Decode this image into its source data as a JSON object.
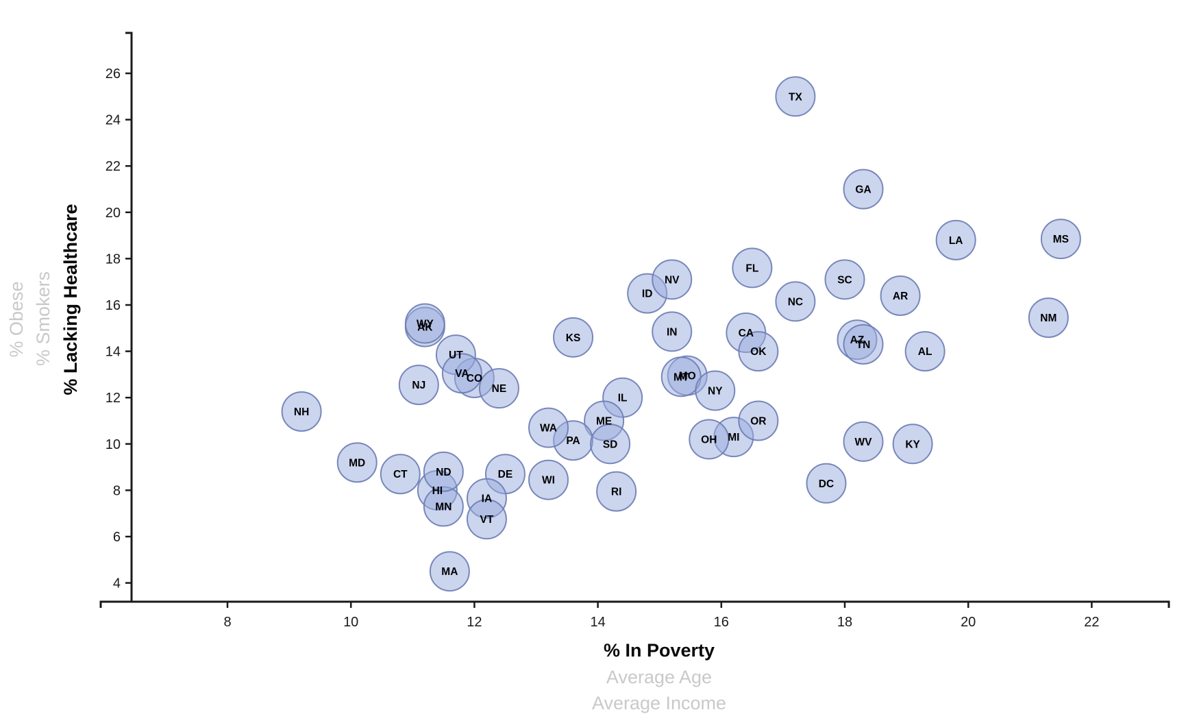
{
  "chart_data": {
    "type": "scatter",
    "title": "",
    "x_axis": {
      "label": "% In Poverty",
      "alt_labels": [
        "Average Age",
        "Average Income"
      ],
      "ticks": [
        8,
        10,
        12,
        14,
        16,
        18,
        20,
        22
      ],
      "range": [
        5.9,
        23.2
      ],
      "grid": false
    },
    "y_axis": {
      "label": "% Lacking Healthcare",
      "alt_labels": [
        "% Smokers",
        "% Obese"
      ],
      "ticks": [
        4,
        6,
        8,
        10,
        12,
        14,
        16,
        18,
        20,
        22,
        24,
        26
      ],
      "range": [
        3.2,
        27.8
      ],
      "grid": false
    },
    "legend": null,
    "series": [
      {
        "state": "AK",
        "poverty": 11.2,
        "lacking_healthcare": 15.05
      },
      {
        "state": "AL",
        "poverty": 19.3,
        "lacking_healthcare": 14.0
      },
      {
        "state": "AR",
        "poverty": 18.9,
        "lacking_healthcare": 16.4
      },
      {
        "state": "AZ",
        "poverty": 18.2,
        "lacking_healthcare": 14.5
      },
      {
        "state": "CA",
        "poverty": 16.4,
        "lacking_healthcare": 14.8
      },
      {
        "state": "CO",
        "poverty": 12.0,
        "lacking_healthcare": 12.85
      },
      {
        "state": "CT",
        "poverty": 10.8,
        "lacking_healthcare": 8.7
      },
      {
        "state": "DC",
        "poverty": 17.7,
        "lacking_healthcare": 8.3
      },
      {
        "state": "DE",
        "poverty": 12.5,
        "lacking_healthcare": 8.7
      },
      {
        "state": "FL",
        "poverty": 16.5,
        "lacking_healthcare": 17.6
      },
      {
        "state": "GA",
        "poverty": 18.3,
        "lacking_healthcare": 21.0
      },
      {
        "state": "HI",
        "poverty": 11.4,
        "lacking_healthcare": 8.0
      },
      {
        "state": "IA",
        "poverty": 12.2,
        "lacking_healthcare": 7.65
      },
      {
        "state": "ID",
        "poverty": 14.8,
        "lacking_healthcare": 16.5
      },
      {
        "state": "IL",
        "poverty": 14.4,
        "lacking_healthcare": 12.0
      },
      {
        "state": "IN",
        "poverty": 15.2,
        "lacking_healthcare": 14.85
      },
      {
        "state": "KS",
        "poverty": 13.6,
        "lacking_healthcare": 14.6
      },
      {
        "state": "KY",
        "poverty": 19.1,
        "lacking_healthcare": 10.0
      },
      {
        "state": "LA",
        "poverty": 19.8,
        "lacking_healthcare": 18.8
      },
      {
        "state": "MA",
        "poverty": 11.6,
        "lacking_healthcare": 4.5
      },
      {
        "state": "MD",
        "poverty": 10.1,
        "lacking_healthcare": 9.2
      },
      {
        "state": "ME",
        "poverty": 14.1,
        "lacking_healthcare": 11.0
      },
      {
        "state": "MI",
        "poverty": 16.2,
        "lacking_healthcare": 10.3
      },
      {
        "state": "MN",
        "poverty": 11.5,
        "lacking_healthcare": 7.3
      },
      {
        "state": "MO",
        "poverty": 15.45,
        "lacking_healthcare": 12.95
      },
      {
        "state": "MS",
        "poverty": 21.5,
        "lacking_healthcare": 18.85
      },
      {
        "state": "MT",
        "poverty": 15.35,
        "lacking_healthcare": 12.9
      },
      {
        "state": "NC",
        "poverty": 17.2,
        "lacking_healthcare": 16.15
      },
      {
        "state": "ND",
        "poverty": 11.5,
        "lacking_healthcare": 8.8
      },
      {
        "state": "NE",
        "poverty": 12.4,
        "lacking_healthcare": 12.4
      },
      {
        "state": "NH",
        "poverty": 9.2,
        "lacking_healthcare": 11.4
      },
      {
        "state": "NJ",
        "poverty": 11.1,
        "lacking_healthcare": 12.55
      },
      {
        "state": "NM",
        "poverty": 21.3,
        "lacking_healthcare": 15.45
      },
      {
        "state": "NV",
        "poverty": 15.2,
        "lacking_healthcare": 17.1
      },
      {
        "state": "NY",
        "poverty": 15.9,
        "lacking_healthcare": 12.3
      },
      {
        "state": "OH",
        "poverty": 15.8,
        "lacking_healthcare": 10.2
      },
      {
        "state": "OK",
        "poverty": 16.6,
        "lacking_healthcare": 14.0
      },
      {
        "state": "OR",
        "poverty": 16.6,
        "lacking_healthcare": 11.0
      },
      {
        "state": "PA",
        "poverty": 13.6,
        "lacking_healthcare": 10.15
      },
      {
        "state": "RI",
        "poverty": 14.3,
        "lacking_healthcare": 7.95
      },
      {
        "state": "SC",
        "poverty": 18.0,
        "lacking_healthcare": 17.1
      },
      {
        "state": "SD",
        "poverty": 14.2,
        "lacking_healthcare": 10.0
      },
      {
        "state": "TN",
        "poverty": 18.3,
        "lacking_healthcare": 14.3
      },
      {
        "state": "TX",
        "poverty": 17.2,
        "lacking_healthcare": 25.0
      },
      {
        "state": "UT",
        "poverty": 11.7,
        "lacking_healthcare": 13.85
      },
      {
        "state": "VA",
        "poverty": 11.8,
        "lacking_healthcare": 13.05
      },
      {
        "state": "VT",
        "poverty": 12.2,
        "lacking_healthcare": 6.75
      },
      {
        "state": "WA",
        "poverty": 13.2,
        "lacking_healthcare": 10.7
      },
      {
        "state": "WI",
        "poverty": 13.2,
        "lacking_healthcare": 8.45
      },
      {
        "state": "WV",
        "poverty": 18.3,
        "lacking_healthcare": 10.1
      },
      {
        "state": "WY",
        "poverty": 11.2,
        "lacking_healthcare": 15.2
      }
    ]
  },
  "styles": {
    "background": "#ffffff",
    "bubble_fill": "#99abdd",
    "bubble_fill_opacity": 0.5,
    "bubble_stroke": "#6b7cb4",
    "bubble_label_color": "#000000",
    "axis_color": "#1a1a1a",
    "active_axis_label_color": "#0a0a0a",
    "muted_axis_label_color": "#c9c9c9"
  }
}
